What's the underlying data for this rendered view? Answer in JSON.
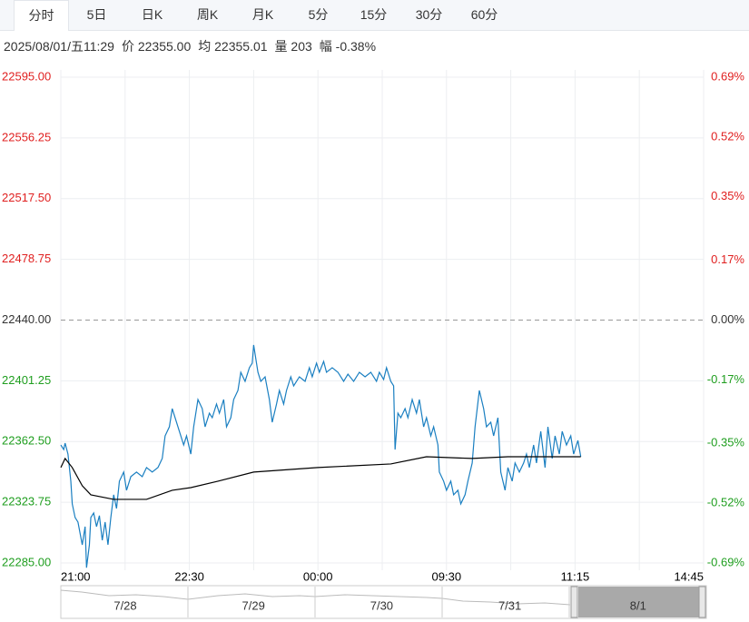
{
  "tabs": [
    "分时",
    "5日",
    "日K",
    "周K",
    "月K",
    "5分",
    "15分",
    "30分",
    "60分"
  ],
  "selected_tab": 0,
  "info": [
    "2025/08/01/五11:29",
    "价 22355.00",
    "均 22355.01",
    "量 203",
    "幅 -0.38%"
  ],
  "navigator": {
    "labels": [
      "7/28",
      "7/29",
      "7/30",
      "7/31",
      "8/1"
    ]
  },
  "chart_data": {
    "type": "line",
    "xlim": [
      0,
      450
    ],
    "xticks": [
      {
        "value": 0,
        "label": "21:00"
      },
      {
        "value": 90,
        "label": "22:30"
      },
      {
        "value": 180,
        "label": "00:00"
      },
      {
        "value": 270,
        "label": "09:30"
      },
      {
        "value": 360,
        "label": "11:15"
      },
      {
        "value": 450,
        "label": "14:45"
      }
    ],
    "xgrid": [
      0,
      45,
      90,
      135,
      180,
      225,
      270,
      315,
      360,
      405,
      450
    ],
    "ylim": [
      22285,
      22595
    ],
    "yticks": [
      {
        "value": 22595,
        "label": "22595.00"
      },
      {
        "value": 22556.25,
        "label": "22556.25"
      },
      {
        "value": 22517.5,
        "label": "22517.50"
      },
      {
        "value": 22478.75,
        "label": "22478.75"
      },
      {
        "value": 22440,
        "label": "22440.00"
      },
      {
        "value": 22401.25,
        "label": "22401.25"
      },
      {
        "value": 22362.5,
        "label": "22362.50"
      },
      {
        "value": 22323.75,
        "label": "22323.75"
      },
      {
        "value": 22285,
        "label": "22285.00"
      }
    ],
    "y2lim": [
      -0.69,
      0.69
    ],
    "y2ticks": [
      {
        "value": 0.69,
        "label": "0.69%"
      },
      {
        "value": 0.52,
        "label": "0.52%"
      },
      {
        "value": 0.35,
        "label": "0.35%"
      },
      {
        "value": 0.17,
        "label": "0.17%"
      },
      {
        "value": 0,
        "label": "0.00%"
      },
      {
        "value": -0.17,
        "label": "-0.17%"
      },
      {
        "value": -0.35,
        "label": "-0.35%"
      },
      {
        "value": -0.52,
        "label": "-0.52%"
      },
      {
        "value": -0.69,
        "label": "-0.69%"
      }
    ],
    "reference_line": 22440,
    "up_color": "#e02020",
    "down_color": "#1f9e1f",
    "flat_color": "#333333",
    "grid": true,
    "series": [
      {
        "color": "#1a7fc1",
        "x": [
          0,
          2,
          3,
          5,
          7,
          8,
          10,
          12,
          15,
          17,
          18,
          20,
          21,
          23,
          25,
          27,
          29,
          31,
          33,
          35,
          37,
          39,
          41,
          44,
          46,
          49,
          53,
          57,
          60,
          64,
          68,
          71,
          73,
          76,
          78,
          81,
          83,
          86,
          88,
          91,
          93,
          96,
          99,
          101,
          104,
          106,
          109,
          111,
          114,
          116,
          119,
          121,
          124,
          126,
          129,
          132,
          134,
          135,
          138,
          140,
          143,
          146,
          148,
          151,
          153,
          156,
          158,
          161,
          163,
          167,
          171,
          174,
          176,
          179,
          181,
          184,
          186,
          190,
          194,
          198,
          201,
          205,
          209,
          213,
          217,
          221,
          223,
          226,
          228,
          231,
          233,
          234,
          236,
          238,
          241,
          243,
          246,
          249,
          251,
          254,
          256,
          259,
          261,
          264,
          265,
          268,
          270,
          273,
          275,
          278,
          280,
          283,
          285,
          288,
          290,
          293,
          296,
          298,
          301,
          303,
          306,
          308,
          311,
          313,
          316,
          318,
          321,
          324,
          326,
          328,
          331,
          333,
          336,
          339,
          341,
          344,
          346,
          349,
          351,
          354,
          357,
          359,
          362,
          364
        ],
        "values": [
          22360.3,
          22357.4,
          22361.5,
          22354.5,
          22337.2,
          22322.7,
          22314.0,
          22311.1,
          22296.6,
          22308.2,
          22282.0,
          22296.6,
          22314.0,
          22316.9,
          22308.2,
          22315.2,
          22299.5,
          22311.1,
          22296.6,
          22314.0,
          22328.5,
          22319.8,
          22337.2,
          22343.0,
          22331.4,
          22340.1,
          22343.0,
          22340.1,
          22345.9,
          22343.0,
          22345.9,
          22351.7,
          22366.1,
          22371.9,
          22383.5,
          22374.8,
          22369.0,
          22360.3,
          22366.1,
          22354.5,
          22371.9,
          22389.3,
          22383.5,
          22371.9,
          22380.6,
          22377.7,
          22386.4,
          22380.6,
          22389.3,
          22371.9,
          22377.7,
          22389.3,
          22395.1,
          22406.7,
          22400.9,
          22409.6,
          22412.5,
          22424.1,
          22406.7,
          22400.9,
          22403.8,
          22389.3,
          22374.8,
          22386.4,
          22395.1,
          22386.4,
          22395.1,
          22403.8,
          22398.0,
          22403.8,
          22400.9,
          22409.6,
          22403.8,
          22412.5,
          22406.7,
          22413.6,
          22406.7,
          22409.6,
          22406.7,
          22400.9,
          22405.5,
          22400.9,
          22406.7,
          22403.8,
          22406.7,
          22400.9,
          22406.7,
          22402.1,
          22409.6,
          22400.9,
          22398.0,
          22357.4,
          22380.6,
          22377.7,
          22383.5,
          22377.7,
          22389.3,
          22380.6,
          22389.3,
          22371.9,
          22377.7,
          22366.1,
          22371.9,
          22360.3,
          22343.0,
          22337.2,
          22331.4,
          22337.2,
          22328.5,
          22331.4,
          22322.7,
          22328.5,
          22337.2,
          22348.8,
          22371.9,
          22395.1,
          22383.5,
          22371.9,
          22374.8,
          22366.1,
          22377.7,
          22343.0,
          22331.4,
          22345.9,
          22337.2,
          22348.8,
          22343.0,
          22348.8,
          22354.5,
          22345.9,
          22360.3,
          22348.8,
          22369.0,
          22345.9,
          22371.9,
          22351.7,
          22366.1,
          22354.5,
          22369.0,
          22360.3,
          22366.1,
          22354.5,
          22363.2,
          22352.8
        ]
      },
      {
        "color": "#000000",
        "x": [
          0,
          3,
          8,
          15,
          21,
          37,
          60,
          78,
          91,
          110,
          135,
          180,
          231,
          256,
          288,
          313,
          364
        ],
        "values": [
          22345.9,
          22351.7,
          22345.9,
          22334.3,
          22328.5,
          22325.6,
          22325.6,
          22331.4,
          22333.1,
          22337.2,
          22343.0,
          22345.9,
          22348.2,
          22352.8,
          22351.7,
          22352.8,
          22352.8
        ]
      }
    ]
  }
}
